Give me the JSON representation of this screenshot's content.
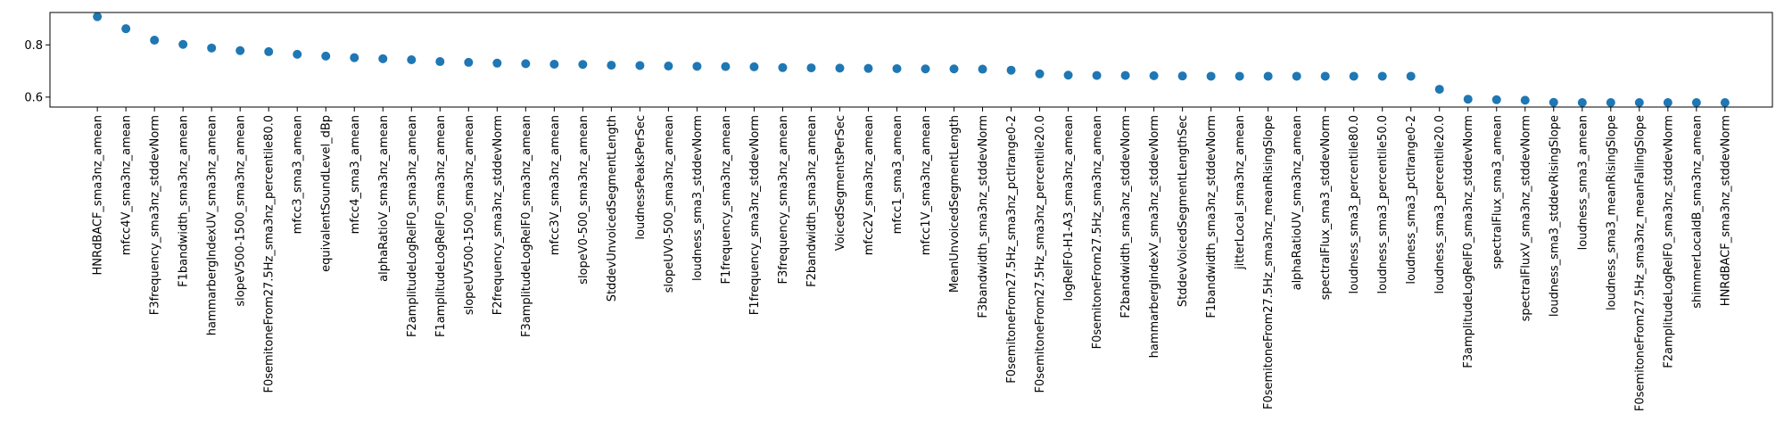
{
  "chart_data": {
    "type": "scatter",
    "title": "",
    "xlabel": "",
    "ylabel": "",
    "ylim": [
      0.562,
      0.924
    ],
    "yticks": [
      0.6,
      0.8
    ],
    "grid": false,
    "marker_color": "#1f77b4",
    "categories": [
      "HNRdBACF_sma3nz_amean",
      "mfcc4V_sma3nz_amean",
      "F3frequency_sma3nz_stddevNorm",
      "F1bandwidth_sma3nz_amean",
      "hammarbergIndexUV_sma3nz_amean",
      "slopeV500-1500_sma3nz_amean",
      "F0semitoneFrom27.5Hz_sma3nz_percentile80.0",
      "mfcc3_sma3_amean",
      "equivalentSoundLevel_dBp",
      "mfcc4_sma3_amean",
      "alphaRatioV_sma3nz_amean",
      "F2amplitudeLogRelF0_sma3nz_amean",
      "F1amplitudeLogRelF0_sma3nz_amean",
      "slopeUV500-1500_sma3nz_amean",
      "F2frequency_sma3nz_stddevNorm",
      "F3amplitudeLogRelF0_sma3nz_amean",
      "mfcc3V_sma3nz_amean",
      "slopeV0-500_sma3nz_amean",
      "StddevUnvoicedSegmentLength",
      "loudnessPeaksPerSec",
      "slopeUV0-500_sma3nz_amean",
      "loudness_sma3_stddevNorm",
      "F1frequency_sma3nz_amean",
      "F1frequency_sma3nz_stddevNorm",
      "F3frequency_sma3nz_amean",
      "F2bandwidth_sma3nz_amean",
      "VoicedSegmentsPerSec",
      "mfcc2V_sma3nz_amean",
      "mfcc1_sma3_amean",
      "mfcc1V_sma3nz_amean",
      "MeanUnvoicedSegmentLength",
      "F3bandwidth_sma3nz_stddevNorm",
      "F0semitoneFrom27.5Hz_sma3nz_pctlrange0-2",
      "F0semitoneFrom27.5Hz_sma3nz_percentile20.0",
      "logRelF0-H1-A3_sma3nz_amean",
      "F0semitoneFrom27.5Hz_sma3nz_amean",
      "F2bandwidth_sma3nz_stddevNorm",
      "hammarbergIndexV_sma3nz_stddevNorm",
      "StddevVoicedSegmentLengthSec",
      "F1bandwidth_sma3nz_stddevNorm",
      "jitterLocal_sma3nz_amean",
      "F0semitoneFrom27.5Hz_sma3nz_meanRisingSlope",
      "alphaRatioUV_sma3nz_amean",
      "spectralFlux_sma3_stddevNorm",
      "loudness_sma3_percentile80.0",
      "loudness_sma3_percentile50.0",
      "loudness_sma3_pctlrange0-2",
      "loudness_sma3_percentile20.0",
      "F3amplitudeLogRelF0_sma3nz_stddevNorm",
      "spectralFlux_sma3_amean",
      "spectralFluxV_sma3nz_stddevNorm",
      "loudness_sma3_stddevRisingSlope",
      "loudness_sma3_amean",
      "loudness_sma3_meanRisingSlope",
      "F0semitoneFrom27.5Hz_sma3nz_meanFallingSlope",
      "F2amplitudeLogRelF0_sma3nz_stddevNorm",
      "shimmerLocaldB_sma3nz_amean",
      "HNRdBACF_sma3nz_stddevNorm"
    ],
    "values": [
      0.908,
      0.862,
      0.818,
      0.802,
      0.788,
      0.778,
      0.774,
      0.764,
      0.757,
      0.751,
      0.747,
      0.743,
      0.736,
      0.733,
      0.73,
      0.728,
      0.726,
      0.725,
      0.722,
      0.721,
      0.719,
      0.718,
      0.717,
      0.716,
      0.713,
      0.712,
      0.711,
      0.71,
      0.709,
      0.708,
      0.708,
      0.707,
      0.703,
      0.689,
      0.684,
      0.683,
      0.683,
      0.682,
      0.681,
      0.68,
      0.68,
      0.68,
      0.68,
      0.68,
      0.68,
      0.68,
      0.68,
      0.63,
      0.592,
      0.59,
      0.588,
      0.58,
      0.579,
      0.579,
      0.579,
      0.579,
      0.579,
      0.579
    ]
  }
}
